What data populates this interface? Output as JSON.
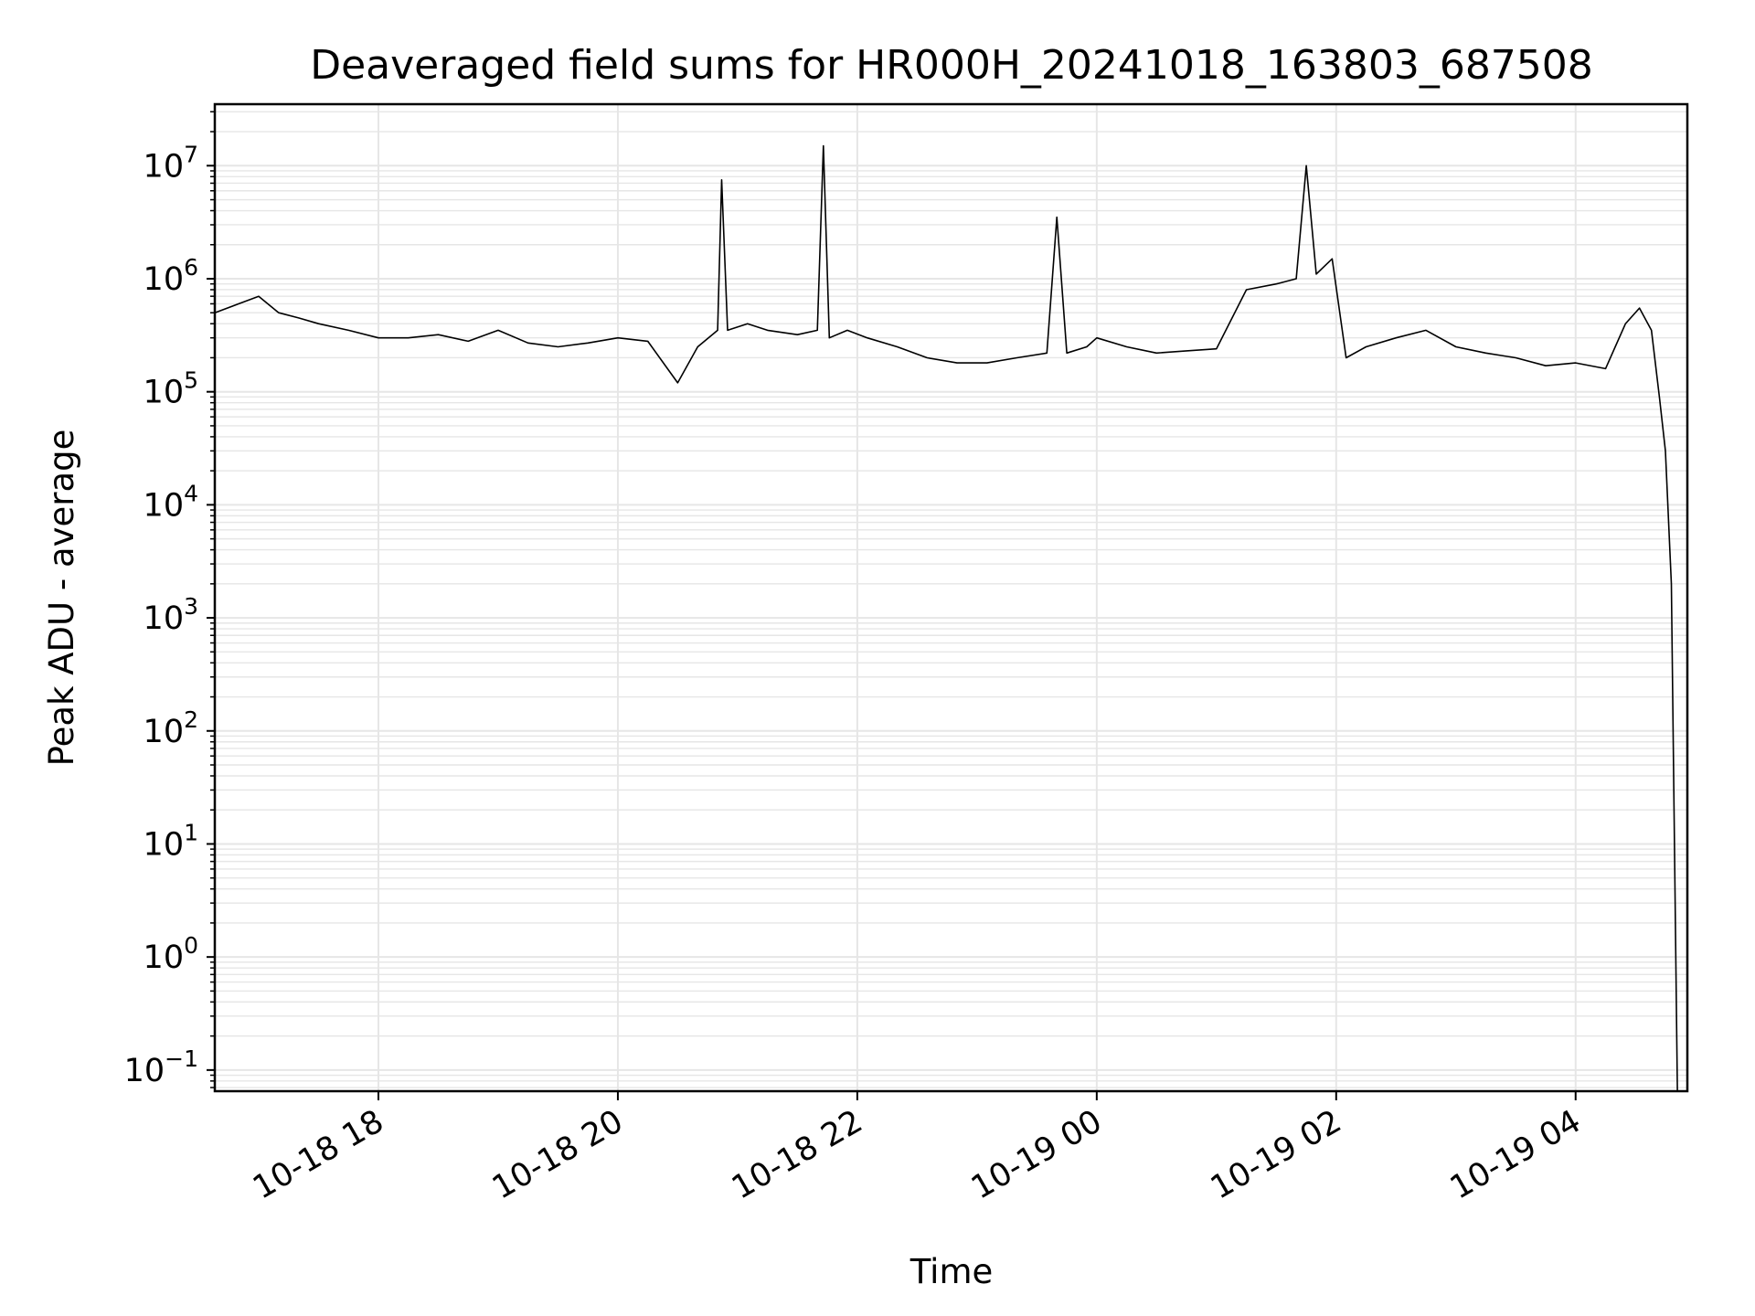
{
  "chart_data": {
    "type": "line",
    "title": "Deaveraged field sums for HR000H_20241018_163803_687508",
    "xlabel": "Time",
    "ylabel": "Peak ADU - average",
    "yscale": "log",
    "grid": true,
    "grid_minor": true,
    "legend": "none",
    "line_color": "#000000",
    "grid_color": "#e6e6e6",
    "xlim": [
      "2024-10-18 16:38",
      "2024-10-19 04:56"
    ],
    "ylim": [
      0.065,
      35000000
    ],
    "x_ticks": [
      {
        "at": "2024-10-18 18:00",
        "label": "10-18 18"
      },
      {
        "at": "2024-10-18 20:00",
        "label": "10-18 20"
      },
      {
        "at": "2024-10-18 22:00",
        "label": "10-18 22"
      },
      {
        "at": "2024-10-19 00:00",
        "label": "10-19 00"
      },
      {
        "at": "2024-10-19 02:00",
        "label": "10-19 02"
      },
      {
        "at": "2024-10-19 04:00",
        "label": "10-19 04"
      }
    ],
    "y_ticks": [
      {
        "value": 0.1,
        "base": "10",
        "exp": "−1"
      },
      {
        "value": 1,
        "base": "10",
        "exp": "0"
      },
      {
        "value": 10,
        "base": "10",
        "exp": "1"
      },
      {
        "value": 100,
        "base": "10",
        "exp": "2"
      },
      {
        "value": 1000,
        "base": "10",
        "exp": "3"
      },
      {
        "value": 10000,
        "base": "10",
        "exp": "4"
      },
      {
        "value": 100000,
        "base": "10",
        "exp": "5"
      },
      {
        "value": 1000000,
        "base": "10",
        "exp": "6"
      },
      {
        "value": 10000000,
        "base": "10",
        "exp": "7"
      }
    ],
    "series": [
      {
        "x": [
          "2024-10-18 16:38",
          "2024-10-18 16:50",
          "2024-10-18 17:00",
          "2024-10-18 17:10",
          "2024-10-18 17:20",
          "2024-10-18 17:30",
          "2024-10-18 17:45",
          "2024-10-18 18:00",
          "2024-10-18 18:15",
          "2024-10-18 18:30",
          "2024-10-18 18:45",
          "2024-10-18 19:00",
          "2024-10-18 19:15",
          "2024-10-18 19:30",
          "2024-10-18 19:45",
          "2024-10-18 20:00",
          "2024-10-18 20:15",
          "2024-10-18 20:30",
          "2024-10-18 20:40",
          "2024-10-18 20:50",
          "2024-10-18 20:52",
          "2024-10-18 20:55",
          "2024-10-18 21:05",
          "2024-10-18 21:15",
          "2024-10-18 21:30",
          "2024-10-18 21:40",
          "2024-10-18 21:43",
          "2024-10-18 21:46",
          "2024-10-18 21:55",
          "2024-10-18 22:05",
          "2024-10-18 22:20",
          "2024-10-18 22:35",
          "2024-10-18 22:50",
          "2024-10-18 23:05",
          "2024-10-18 23:20",
          "2024-10-18 23:35",
          "2024-10-18 23:40",
          "2024-10-18 23:45",
          "2024-10-18 23:55",
          "2024-10-19 00:00",
          "2024-10-19 00:15",
          "2024-10-19 00:30",
          "2024-10-19 00:45",
          "2024-10-19 01:00",
          "2024-10-19 01:15",
          "2024-10-19 01:30",
          "2024-10-19 01:40",
          "2024-10-19 01:45",
          "2024-10-19 01:50",
          "2024-10-19 01:58",
          "2024-10-19 02:05",
          "2024-10-19 02:15",
          "2024-10-19 02:30",
          "2024-10-19 02:45",
          "2024-10-19 03:00",
          "2024-10-19 03:15",
          "2024-10-19 03:30",
          "2024-10-19 03:45",
          "2024-10-19 04:00",
          "2024-10-19 04:15",
          "2024-10-19 04:25",
          "2024-10-19 04:32",
          "2024-10-19 04:38",
          "2024-10-19 04:42",
          "2024-10-19 04:45",
          "2024-10-19 04:48",
          "2024-10-19 04:51"
        ],
        "y": [
          500000,
          600000,
          700000,
          500000,
          450000,
          400000,
          350000,
          300000,
          300000,
          320000,
          280000,
          350000,
          270000,
          250000,
          270000,
          300000,
          280000,
          120000,
          250000,
          350000,
          7500000,
          350000,
          400000,
          350000,
          320000,
          350000,
          15000000,
          300000,
          350000,
          300000,
          250000,
          200000,
          180000,
          180000,
          200000,
          220000,
          3500000,
          220000,
          250000,
          300000,
          250000,
          220000,
          230000,
          240000,
          800000,
          900000,
          1000000,
          10000000,
          1100000,
          1500000,
          200000,
          250000,
          300000,
          350000,
          250000,
          220000,
          200000,
          170000,
          180000,
          160000,
          400000,
          550000,
          350000,
          90000,
          30000,
          2000,
          0.065
        ]
      }
    ]
  }
}
